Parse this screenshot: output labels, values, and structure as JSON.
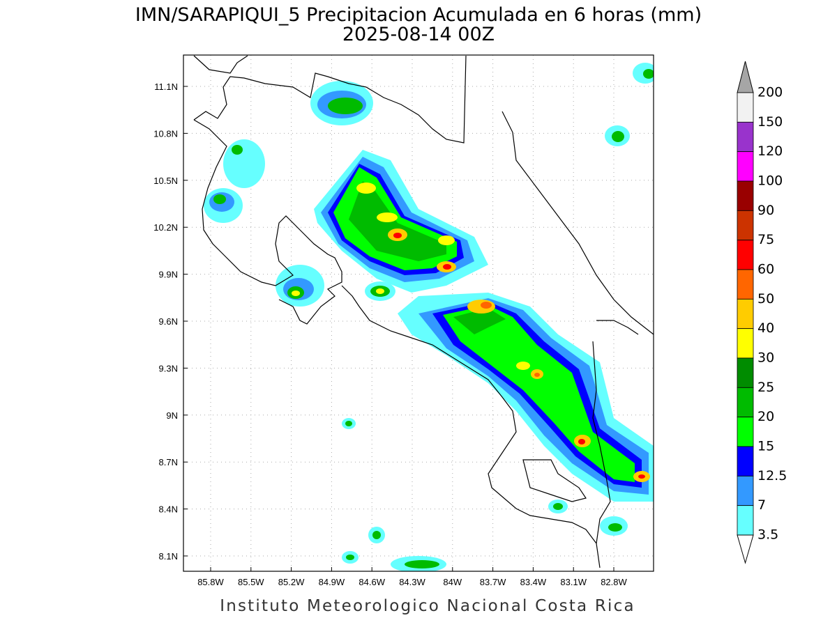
{
  "header": {
    "title": "IMN/SARAPIQUI_5 Precipitacion Acumulada en 6 horas (mm)",
    "subtitle": "2025-08-14 00Z"
  },
  "map": {
    "lat_labels": [
      "11.1N",
      "10.8N",
      "10.5N",
      "10.2N",
      "9.9N",
      "9.6N",
      "9.3N",
      "9N",
      "8.7N",
      "8.4N",
      "8.1N"
    ],
    "lon_labels": [
      "85.8W",
      "85.5W",
      "85.2W",
      "84.9W",
      "84.6W",
      "84.3W",
      "84W",
      "83.7W",
      "83.4W",
      "83.1W",
      "82.8W"
    ]
  },
  "colorbar": {
    "labels": [
      "200",
      "150",
      "120",
      "100",
      "90",
      "75",
      "60",
      "50",
      "40",
      "30",
      "25",
      "20",
      "15",
      "12.5",
      "7",
      "3.5"
    ],
    "colors": [
      "#f2f2f2",
      "#9933cc",
      "#ff00ff",
      "#990000",
      "#cc3300",
      "#ff0000",
      "#ff6600",
      "#ffcc00",
      "#ffff00",
      "#008c00",
      "#00bb00",
      "#00ff00",
      "#0000ff",
      "#3399ff",
      "#66ffff"
    ],
    "over_color": "#a6a6a6",
    "under_color": "#ffffff"
  },
  "footer": "Instituto Meteorologico Nacional Costa Rica"
}
